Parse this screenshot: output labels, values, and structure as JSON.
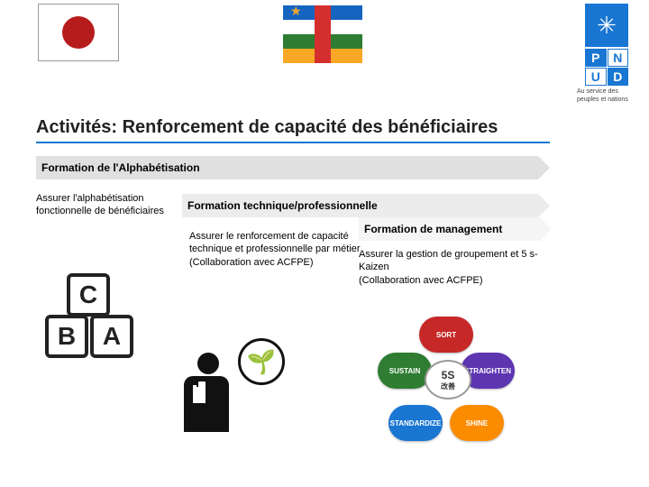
{
  "title": "Activités: Renforcement de capacité des bénéficiaires",
  "undp_tagline": "Au service des peuples et nations",
  "row1": {
    "header": "Formation de l'Alphabétisation",
    "body": "Assurer l'alphabétisation fonctionnelle de bénéficiaires"
  },
  "row2": {
    "header": "Formation technique/professionnelle",
    "body": "Assurer le renforcement de capacité technique et professionnelle par métier",
    "collab": "(Collaboration avec ACFPE)"
  },
  "row3": {
    "header": "Formation de management",
    "body": "Assurer la gestion de groupement et 5 s-Kaizen",
    "collab": "(Collaboration avec ACFPE)"
  },
  "abc": {
    "a": "A",
    "b": "B",
    "c": "C"
  },
  "fiveS": {
    "center": "5S",
    "center_sub": "改善",
    "sort": "SORT",
    "straighten": "STRAIGHTEN",
    "shine": "SHINE",
    "standardize": "STANDARDIZE",
    "sustain": "SUSTAIN"
  },
  "pnud": {
    "p": "P",
    "n": "N",
    "u": "U",
    "d": "D"
  },
  "colors": {
    "underline": "#1976d2",
    "row1_bg": "#e0e0e0",
    "row2_bg": "#ececec",
    "row3_bg": "#f5f5f5"
  }
}
